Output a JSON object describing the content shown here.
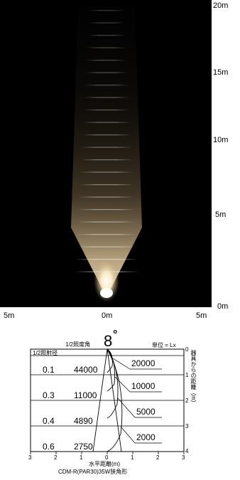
{
  "beam_view": {
    "height_labels": [
      "20m",
      "15m",
      "10m",
      "5m",
      "0m"
    ],
    "width_labels": [
      "5m",
      "0m",
      "5m"
    ]
  },
  "chart": {
    "half_angle_label": "1/2照度角",
    "angle_value": "8",
    "degree_symbol": "°",
    "unit_label": "単位 = Lx",
    "half_diameter_label": "1/2照射径",
    "rows": [
      {
        "radius": "0.1",
        "center_lux": "44000"
      },
      {
        "radius": "0.3",
        "center_lux": "11000"
      },
      {
        "radius": "0.4",
        "center_lux": "4890"
      },
      {
        "radius": "0.6",
        "center_lux": "2750"
      }
    ],
    "iso_labels": [
      "20000",
      "10000",
      "5000",
      "2000"
    ],
    "right_axis_ticks": [
      "0",
      "1",
      "2",
      "3",
      "4"
    ],
    "right_axis_title": "器具からの距離（m）",
    "x_ticks": [
      "3",
      "2",
      "1",
      "0",
      "1",
      "2",
      "3"
    ],
    "x_axis_title": "水平距離(m)",
    "caption": "CDM-R(PAR30)35W狭角形"
  }
}
